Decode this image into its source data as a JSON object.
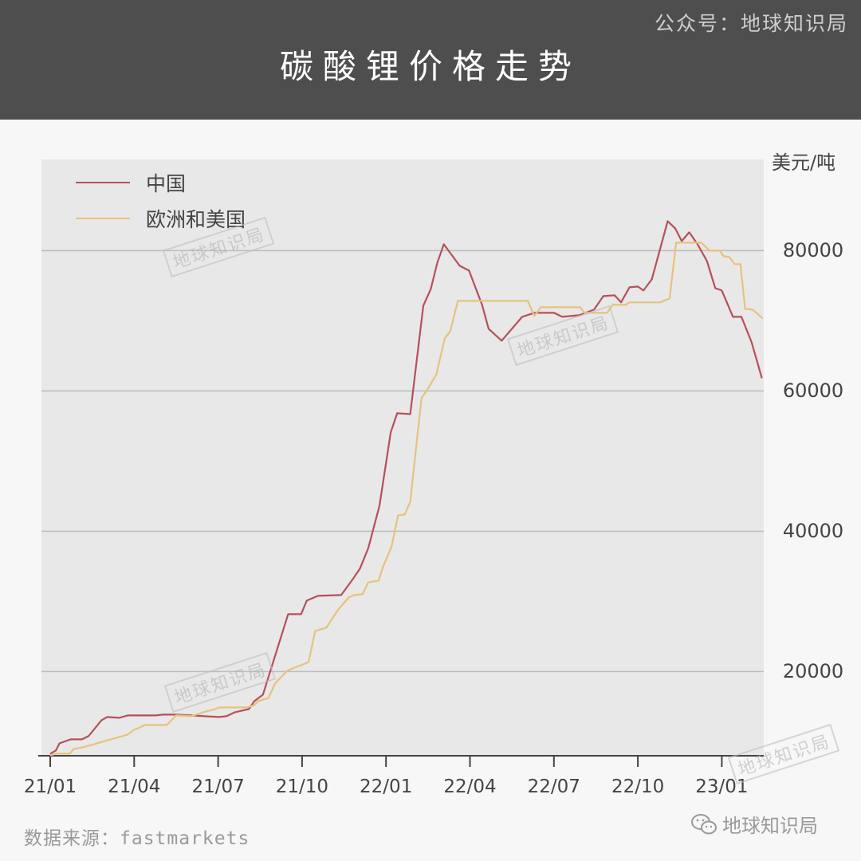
{
  "header": {
    "title": "碳酸锂价格走势",
    "account": "公众号：地球知识局"
  },
  "watermark": "地球知识局",
  "footer": {
    "source": "数据来源：fastmarkets",
    "brand": "地球知识局",
    "brand_icon": "wechat-icon"
  },
  "chart_data": {
    "type": "line",
    "title": "碳酸锂价格走势",
    "ylabel": "美元/吨",
    "ylim": [
      8000,
      93000
    ],
    "yticks": [
      20000,
      40000,
      60000,
      80000
    ],
    "ytick_labels": [
      "20000",
      "40000",
      "60000",
      "80000"
    ],
    "y_axis_position": "right",
    "xlim": [
      "2021-01-01",
      "2023-02-16"
    ],
    "xticks": [
      "2021-01-01",
      "2021-04-01",
      "2021-07-01",
      "2021-10-01",
      "2022-01-01",
      "2022-04-01",
      "2022-07-01",
      "2022-10-01",
      "2023-01-01"
    ],
    "xtick_labels": [
      "21/01",
      "21/04",
      "21/07",
      "21/10",
      "22/01",
      "22/04",
      "22/07",
      "22/10",
      "23/01"
    ],
    "grid": "horizontal",
    "legend": "top-left",
    "series": [
      {
        "name": "中国",
        "color": "#b5505a",
        "points": [
          [
            "2021-01-01",
            8300
          ],
          [
            "2021-01-07",
            8750
          ],
          [
            "2021-01-11",
            9770
          ],
          [
            "2021-01-23",
            10340
          ],
          [
            "2021-02-05",
            10340
          ],
          [
            "2021-02-12",
            10800
          ],
          [
            "2021-02-26",
            13070
          ],
          [
            "2021-03-02",
            13520
          ],
          [
            "2021-03-15",
            13410
          ],
          [
            "2021-03-24",
            13750
          ],
          [
            "2021-04-24",
            13750
          ],
          [
            "2021-05-02",
            13860
          ],
          [
            "2021-05-15",
            13860
          ],
          [
            "2021-06-02",
            13750
          ],
          [
            "2021-07-02",
            13520
          ],
          [
            "2021-07-10",
            13640
          ],
          [
            "2021-07-19",
            14200
          ],
          [
            "2021-08-04",
            14660
          ],
          [
            "2021-08-10",
            15800
          ],
          [
            "2021-08-19",
            16700
          ],
          [
            "2021-09-16",
            28180
          ],
          [
            "2021-09-30",
            28180
          ],
          [
            "2021-10-06",
            30110
          ],
          [
            "2021-10-18",
            30800
          ],
          [
            "2021-11-13",
            30910
          ],
          [
            "2021-11-26",
            33300
          ],
          [
            "2021-12-03",
            34660
          ],
          [
            "2021-12-12",
            37610
          ],
          [
            "2021-12-24",
            43640
          ],
          [
            "2022-01-06",
            54090
          ],
          [
            "2022-01-13",
            56820
          ],
          [
            "2022-01-27",
            56700
          ],
          [
            "2022-02-11",
            72160
          ],
          [
            "2022-02-19",
            74550
          ],
          [
            "2022-02-26",
            78300
          ],
          [
            "2022-03-03",
            80910
          ],
          [
            "2022-03-20",
            77840
          ],
          [
            "2022-03-30",
            77160
          ],
          [
            "2022-04-14",
            72270
          ],
          [
            "2022-04-21",
            68860
          ],
          [
            "2022-05-05",
            67160
          ],
          [
            "2022-05-27",
            70570
          ],
          [
            "2022-06-10",
            71140
          ],
          [
            "2022-07-01",
            71140
          ],
          [
            "2022-07-10",
            70570
          ],
          [
            "2022-07-28",
            70800
          ],
          [
            "2022-08-14",
            71590
          ],
          [
            "2022-08-24",
            73520
          ],
          [
            "2022-09-06",
            73640
          ],
          [
            "2022-09-13",
            72620
          ],
          [
            "2022-09-22",
            74770
          ],
          [
            "2022-10-01",
            74890
          ],
          [
            "2022-10-07",
            74320
          ],
          [
            "2022-10-16",
            75910
          ],
          [
            "2022-11-03",
            84210
          ],
          [
            "2022-11-11",
            83180
          ],
          [
            "2022-11-18",
            81360
          ],
          [
            "2022-11-26",
            82610
          ],
          [
            "2022-12-05",
            80910
          ],
          [
            "2022-12-15",
            78530
          ],
          [
            "2022-12-24",
            74660
          ],
          [
            "2022-12-31",
            74320
          ],
          [
            "2023-01-13",
            70570
          ],
          [
            "2023-01-22",
            70570
          ],
          [
            "2023-02-03",
            66930
          ],
          [
            "2023-02-14",
            61820
          ]
        ]
      },
      {
        "name": "欧洲和美国",
        "color": "#e6c27e",
        "points": [
          [
            "2021-01-01",
            8070
          ],
          [
            "2021-01-07",
            8300
          ],
          [
            "2021-01-22",
            8300
          ],
          [
            "2021-01-26",
            8980
          ],
          [
            "2021-02-06",
            9200
          ],
          [
            "2021-03-24",
            11020
          ],
          [
            "2021-03-31",
            11700
          ],
          [
            "2021-04-09",
            12160
          ],
          [
            "2021-04-12",
            12390
          ],
          [
            "2021-05-06",
            12390
          ],
          [
            "2021-05-16",
            13750
          ],
          [
            "2021-06-02",
            13640
          ],
          [
            "2021-06-15",
            14200
          ],
          [
            "2021-06-28",
            14660
          ],
          [
            "2021-07-02",
            14890
          ],
          [
            "2021-08-02",
            14890
          ],
          [
            "2021-08-10",
            15230
          ],
          [
            "2021-08-14",
            15800
          ],
          [
            "2021-08-25",
            16250
          ],
          [
            "2021-09-02",
            18300
          ],
          [
            "2021-09-15",
            20110
          ],
          [
            "2021-09-23",
            20570
          ],
          [
            "2021-09-30",
            20910
          ],
          [
            "2021-10-08",
            21360
          ],
          [
            "2021-10-15",
            25800
          ],
          [
            "2021-10-27",
            26250
          ],
          [
            "2021-11-10",
            28860
          ],
          [
            "2021-11-21",
            30570
          ],
          [
            "2021-11-27",
            30910
          ],
          [
            "2021-12-06",
            31020
          ],
          [
            "2021-12-12",
            32730
          ],
          [
            "2021-12-23",
            32950
          ],
          [
            "2021-12-28",
            35000
          ],
          [
            "2022-01-07",
            37840
          ],
          [
            "2022-01-14",
            42270
          ],
          [
            "2022-01-21",
            42390
          ],
          [
            "2022-01-27",
            44200
          ],
          [
            "2022-02-09",
            58980
          ],
          [
            "2022-02-16",
            60340
          ],
          [
            "2022-02-25",
            62390
          ],
          [
            "2022-03-04",
            67500
          ],
          [
            "2022-03-10",
            68520
          ],
          [
            "2022-03-18",
            72840
          ],
          [
            "2022-06-03",
            72840
          ],
          [
            "2022-06-10",
            70680
          ],
          [
            "2022-06-17",
            71930
          ],
          [
            "2022-07-29",
            71930
          ],
          [
            "2022-08-04",
            71140
          ],
          [
            "2022-08-28",
            71140
          ],
          [
            "2022-09-04",
            72270
          ],
          [
            "2022-09-18",
            72270
          ],
          [
            "2022-09-22",
            72620
          ],
          [
            "2022-10-25",
            72620
          ],
          [
            "2022-11-05",
            73180
          ],
          [
            "2022-11-12",
            81140
          ],
          [
            "2022-12-09",
            81140
          ],
          [
            "2022-12-18",
            80000
          ],
          [
            "2022-12-29",
            80000
          ],
          [
            "2023-01-03",
            79200
          ],
          [
            "2023-01-09",
            79090
          ],
          [
            "2023-01-15",
            78070
          ],
          [
            "2023-01-21",
            78070
          ],
          [
            "2023-01-26",
            71700
          ],
          [
            "2023-02-04",
            71590
          ],
          [
            "2023-02-15",
            70340
          ]
        ]
      }
    ]
  }
}
